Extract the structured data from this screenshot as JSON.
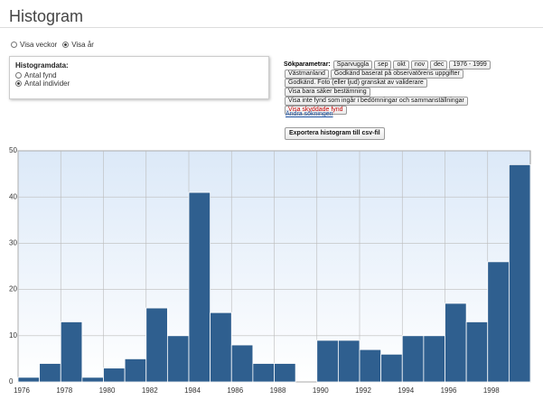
{
  "header": {
    "title": "Histogram"
  },
  "view_options": {
    "items": [
      "Visa veckor",
      "Visa år"
    ],
    "selected": 1
  },
  "histogram_data": {
    "title": "Histogramdata:",
    "items": [
      "Antal fynd",
      "Antal individer"
    ],
    "selected": 1
  },
  "search": {
    "label": "Sökparametrar:",
    "rows": [
      [
        "Sparvuggla",
        "sep",
        "okt",
        "nov",
        "dec",
        "1976 - 1999"
      ],
      [
        "Västmanland",
        "Godkänd baserat på observatörens uppgifter"
      ],
      [
        "Godkänd. Foto (eller ljud) granskat av validerare"
      ],
      [
        "Visa bara säker bestämning"
      ],
      [
        "Visa inte fynd som ingår i bedömningar och sammanställningar"
      ],
      [
        "Visa skyddade fynd"
      ]
    ],
    "highlight_row": 5,
    "highlight_color": "#c00000",
    "link": "Ändra sökningen"
  },
  "export_button": "Exportera histogram till csv-fil",
  "chart_data": {
    "type": "histogram",
    "bins": [
      1976,
      1977,
      1978,
      1979,
      1980,
      1981,
      1982,
      1983,
      1984,
      1985,
      1986,
      1987,
      1988,
      1989,
      1990,
      1991,
      1992,
      1993,
      1994,
      1995,
      1996,
      1997,
      1998,
      1999,
      2000
    ],
    "values": [
      1,
      4,
      13,
      1,
      3,
      5,
      16,
      10,
      41,
      15,
      8,
      4,
      4,
      0,
      9,
      9,
      7,
      6,
      10,
      10,
      17,
      13,
      26,
      47
    ],
    "color": "#2f5f8f",
    "xlim": [
      1976,
      2000
    ],
    "xticks": [
      1976,
      1978,
      1980,
      1982,
      1984,
      1986,
      1988,
      1990,
      1992,
      1994,
      1996,
      1998
    ],
    "ylim": [
      0,
      50
    ],
    "yticks": [
      0,
      10,
      20,
      30,
      40,
      50
    ],
    "grid": true
  }
}
